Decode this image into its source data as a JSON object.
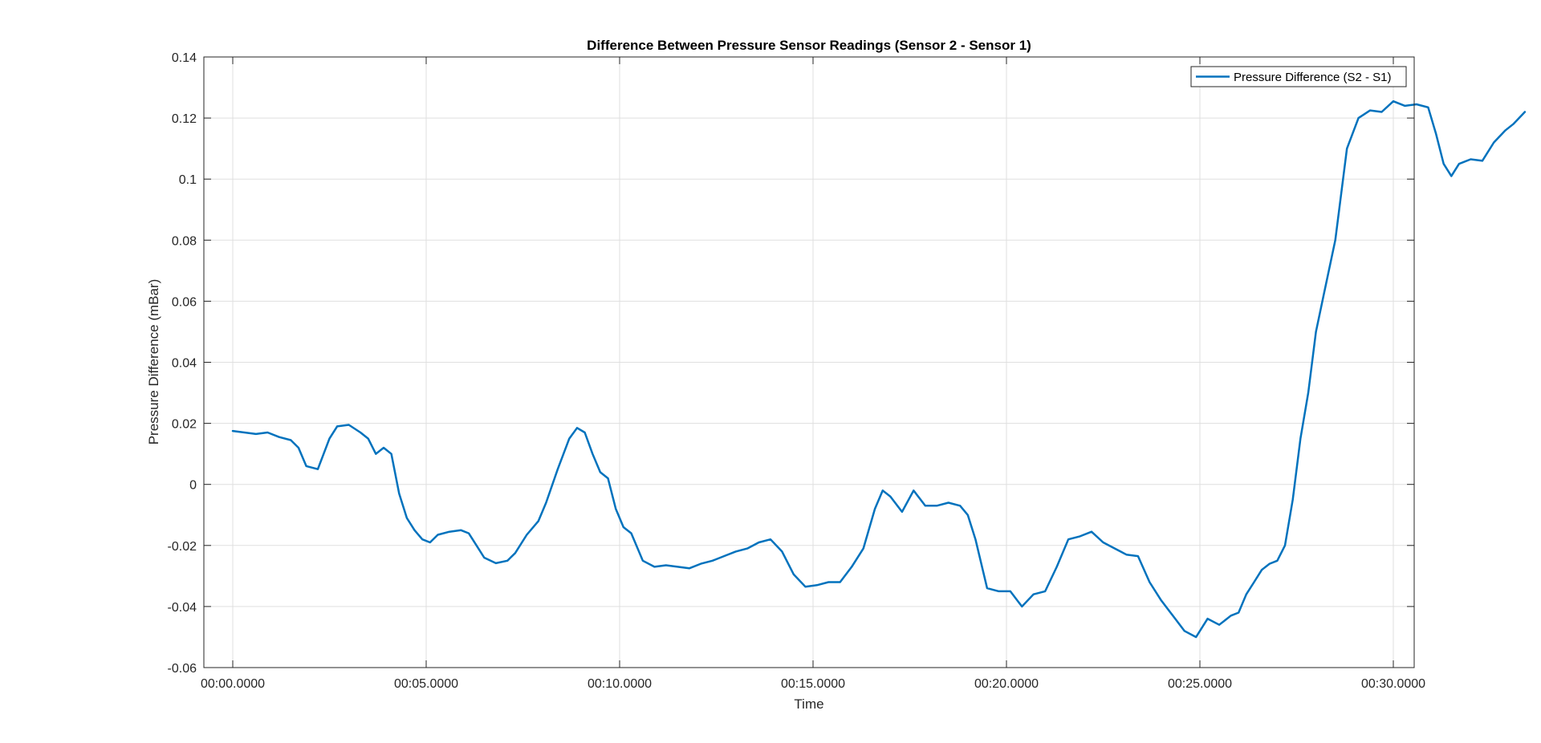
{
  "chart_data": {
    "type": "line",
    "title": "Difference Between Pressure Sensor Readings (Sensor 2 - Sensor 1)",
    "xlabel": "Time",
    "ylabel": "Pressure Difference (mBar)",
    "x_unit": "seconds",
    "xlim": [
      0,
      34.2
    ],
    "ylim": [
      -0.06,
      0.14
    ],
    "x_ticks": [
      0,
      5,
      10,
      15,
      20,
      25,
      30
    ],
    "x_tick_labels": [
      "00:00.0000",
      "00:05.0000",
      "00:10.0000",
      "00:15.0000",
      "00:20.0000",
      "00:25.0000",
      "00:30.0000"
    ],
    "y_ticks": [
      -0.06,
      -0.04,
      -0.02,
      0,
      0.02,
      0.04,
      0.06,
      0.08,
      0.1,
      0.12,
      0.14
    ],
    "y_tick_labels": [
      "-0.06",
      "-0.04",
      "-0.02",
      "0",
      "0.02",
      "0.04",
      "0.06",
      "0.08",
      "0.1",
      "0.12",
      "0.14"
    ],
    "grid": true,
    "legend_position": "top-right",
    "series": [
      {
        "name": "Pressure Difference (S2 - S1)",
        "color": "#0072BD",
        "x": [
          0,
          0.3,
          0.6,
          0.9,
          1.2,
          1.5,
          1.7,
          1.9,
          2.2,
          2.5,
          2.7,
          3.0,
          3.3,
          3.5,
          3.7,
          3.9,
          4.1,
          4.3,
          4.5,
          4.7,
          4.9,
          5.1,
          5.3,
          5.6,
          5.9,
          6.1,
          6.3,
          6.5,
          6.8,
          7.1,
          7.3,
          7.6,
          7.9,
          8.1,
          8.4,
          8.7,
          8.9,
          9.1,
          9.3,
          9.5,
          9.7,
          9.9,
          10.1,
          10.3,
          10.6,
          10.9,
          11.2,
          11.5,
          11.8,
          12.1,
          12.4,
          12.7,
          13.0,
          13.3,
          13.6,
          13.9,
          14.2,
          14.5,
          14.8,
          15.1,
          15.4,
          15.7,
          16.0,
          16.3,
          16.6,
          16.8,
          17.0,
          17.3,
          17.6,
          17.9,
          18.2,
          18.5,
          18.8,
          19.0,
          19.2,
          19.5,
          19.8,
          20.1,
          20.4,
          20.7,
          21.0,
          21.3,
          21.6,
          21.9,
          22.2,
          22.5,
          22.8,
          23.1,
          23.4,
          23.7,
          24.0,
          24.3,
          24.6,
          24.9,
          25.2,
          25.5,
          25.8,
          26.0,
          26.2,
          26.4,
          26.6,
          26.8,
          27.0,
          27.2,
          27.4,
          27.6,
          27.8,
          28.0,
          28.2,
          28.5,
          28.8,
          29.1,
          29.4,
          29.7,
          30.0,
          30.3,
          30.6,
          30.9,
          31.1,
          31.3,
          31.5,
          31.7,
          32.0,
          32.3,
          32.6,
          32.9,
          33.1,
          33.4
        ],
        "values": [
          0.0175,
          0.017,
          0.0165,
          0.017,
          0.0155,
          0.0145,
          0.012,
          0.006,
          0.005,
          0.015,
          0.019,
          0.0195,
          0.017,
          0.015,
          0.01,
          0.012,
          0.01,
          -0.003,
          -0.011,
          -0.015,
          -0.018,
          -0.019,
          -0.0165,
          -0.0155,
          -0.015,
          -0.016,
          -0.02,
          -0.024,
          -0.0258,
          -0.025,
          -0.0225,
          -0.0165,
          -0.012,
          -0.006,
          0.005,
          0.015,
          0.0185,
          0.017,
          0.01,
          0.004,
          0.002,
          -0.008,
          -0.014,
          -0.016,
          -0.025,
          -0.027,
          -0.0265,
          -0.027,
          -0.0275,
          -0.026,
          -0.025,
          -0.0235,
          -0.022,
          -0.021,
          -0.019,
          -0.018,
          -0.022,
          -0.0295,
          -0.0335,
          -0.033,
          -0.032,
          -0.032,
          -0.027,
          -0.021,
          -0.008,
          -0.002,
          -0.004,
          -0.009,
          -0.002,
          -0.007,
          -0.007,
          -0.006,
          -0.007,
          -0.01,
          -0.018,
          -0.034,
          -0.035,
          -0.035,
          -0.04,
          -0.036,
          -0.035,
          -0.027,
          -0.018,
          -0.017,
          -0.0155,
          -0.019,
          -0.021,
          -0.023,
          -0.0235,
          -0.032,
          -0.038,
          -0.043,
          -0.048,
          -0.05,
          -0.044,
          -0.046,
          -0.043,
          -0.042,
          -0.036,
          -0.032,
          -0.028,
          -0.026,
          -0.025,
          -0.02,
          -0.005,
          0.015,
          0.03,
          0.05,
          0.062,
          0.08,
          0.11,
          0.12,
          0.1225,
          0.122,
          0.1255,
          0.124,
          0.1245,
          0.1235,
          0.115,
          0.105,
          0.101,
          0.105,
          0.1065,
          0.106,
          0.112,
          0.116,
          0.118,
          0.122
        ]
      }
    ]
  }
}
